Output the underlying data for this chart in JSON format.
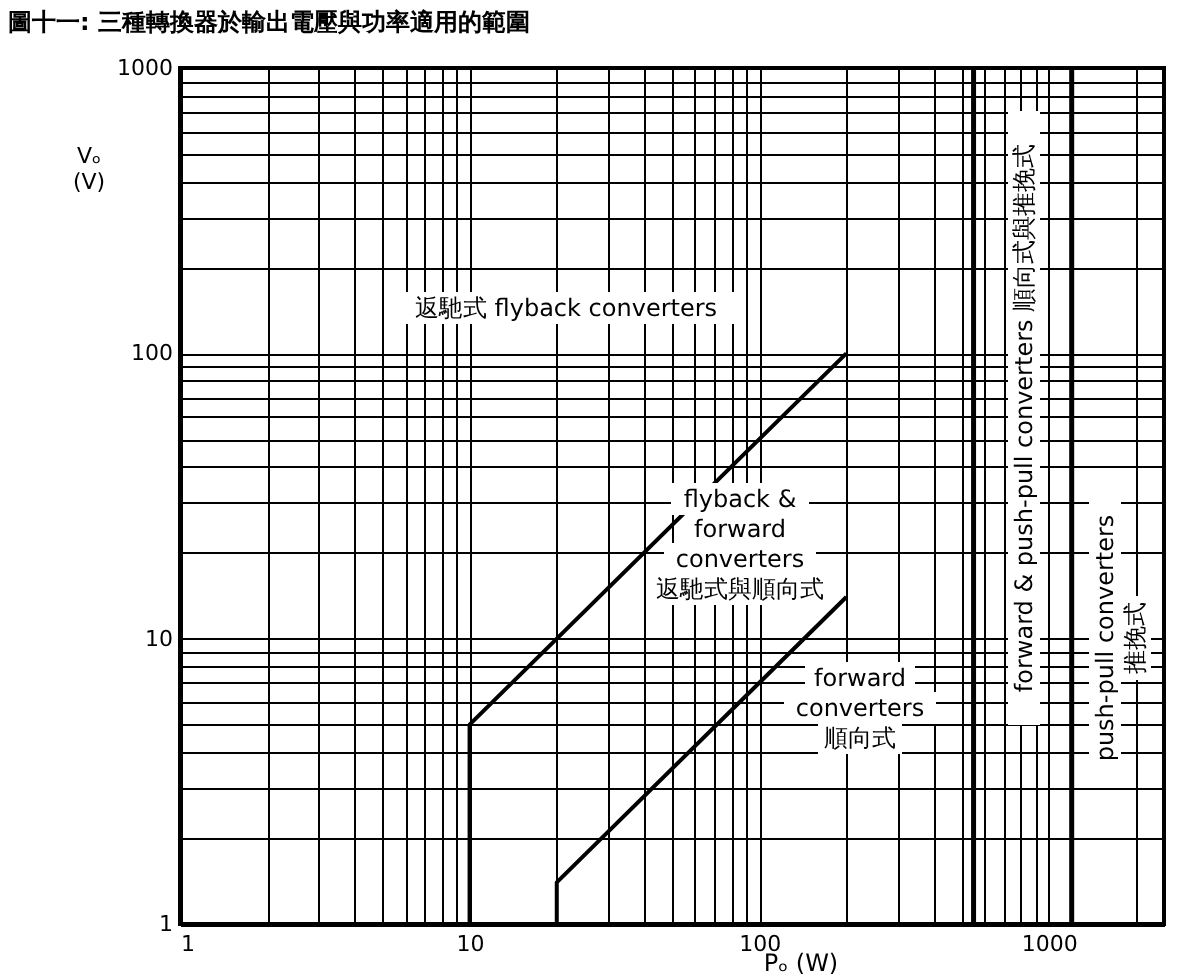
{
  "chart_data": {
    "type": "line",
    "title": "圖十一:  三種轉換器於輸出電壓與功率適用的範圍",
    "xlabel": "Pₒ (W)",
    "ylabel": "Vₒ\n(V)",
    "log": "xy",
    "grid": true,
    "xlim": [
      1,
      2500
    ],
    "ylim": [
      1,
      1000
    ],
    "xticks": [
      1,
      {
        "value": 2,
        "label": null
      },
      {
        "value": 3,
        "label": null
      },
      {
        "value": 4,
        "label": null
      },
      {
        "value": 5,
        "label": null
      },
      {
        "value": 6,
        "label": null
      },
      {
        "value": 7,
        "label": null
      },
      {
        "value": 8,
        "label": null
      },
      {
        "value": 9,
        "label": null
      },
      10,
      {
        "value": 20,
        "label": null
      },
      {
        "value": 30,
        "label": null
      },
      {
        "value": 40,
        "label": null
      },
      {
        "value": 50,
        "label": null
      },
      {
        "value": 60,
        "label": null
      },
      {
        "value": 70,
        "label": null
      },
      {
        "value": 80,
        "label": null
      },
      {
        "value": 90,
        "label": null
      },
      100,
      {
        "value": 200,
        "label": null
      },
      {
        "value": 300,
        "label": null
      },
      {
        "value": 400,
        "label": null
      },
      {
        "value": 500,
        "label": null
      },
      {
        "value": 600,
        "label": null
      },
      {
        "value": 700,
        "label": null
      },
      {
        "value": 800,
        "label": null
      },
      {
        "value": 900,
        "label": null
      },
      1000,
      {
        "value": 2000,
        "label": null
      }
    ],
    "yticks": [
      1,
      {
        "value": 2,
        "label": null
      },
      {
        "value": 3,
        "label": null
      },
      {
        "value": 4,
        "label": null
      },
      {
        "value": 5,
        "label": null
      },
      {
        "value": 6,
        "label": null
      },
      {
        "value": 7,
        "label": null
      },
      {
        "value": 8,
        "label": null
      },
      {
        "value": 9,
        "label": null
      },
      10,
      {
        "value": 20,
        "label": null
      },
      {
        "value": 30,
        "label": null
      },
      {
        "value": 40,
        "label": null
      },
      {
        "value": 50,
        "label": null
      },
      {
        "value": 60,
        "label": null
      },
      {
        "value": 70,
        "label": null
      },
      {
        "value": 80,
        "label": null
      },
      {
        "value": 90,
        "label": null
      },
      100,
      {
        "value": 200,
        "label": null
      },
      {
        "value": 300,
        "label": null
      },
      {
        "value": 400,
        "label": null
      },
      {
        "value": 500,
        "label": null
      },
      {
        "value": 600,
        "label": null
      },
      {
        "value": 700,
        "label": null
      },
      {
        "value": 800,
        "label": null
      },
      {
        "value": 900,
        "label": null
      },
      1000
    ],
    "series": [
      {
        "color": "#000000",
        "x": [
          10,
          10,
          200
        ],
        "values": [
          1,
          5,
          100
        ]
      },
      {
        "color": "#000000",
        "x": [
          20,
          20,
          200
        ],
        "values": [
          1,
          1.4,
          14
        ]
      }
    ],
    "ref_lines": [
      {
        "axis": "x",
        "value": 550,
        "color": "#000000"
      },
      {
        "axis": "x",
        "value": 1200,
        "color": "#000000"
      }
    ],
    "annotations": [
      "返馳式 flyback converters",
      "flyback &\nforward\nconverters\n返馳式與順向式",
      "forward\nconverters\n順向式",
      "forward & push-pull converters 順向式與推挽式",
      "push-pull converters\n推挽式"
    ]
  }
}
